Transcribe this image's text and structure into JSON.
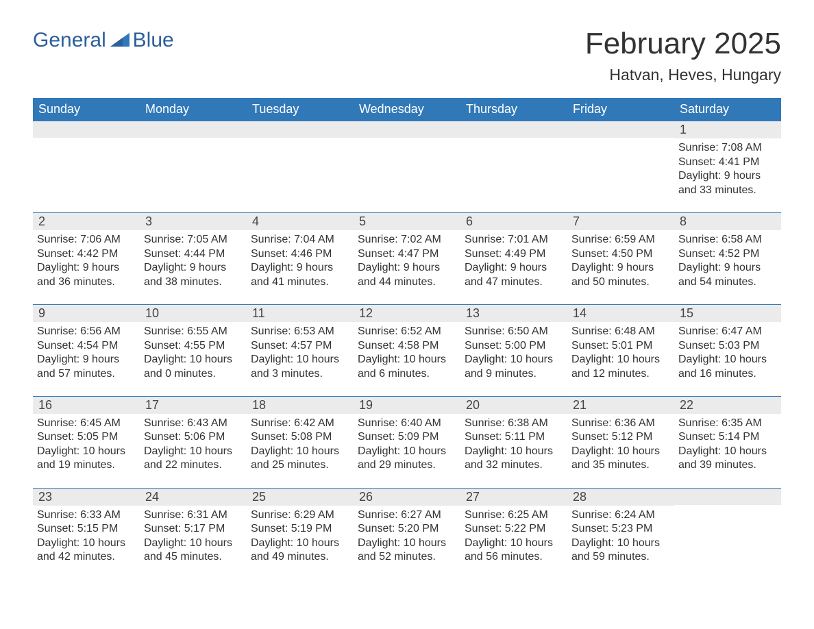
{
  "logo": {
    "word1": "General",
    "word2": "Blue",
    "color_primary": "#2d5f9a",
    "color_accent": "#3178b8"
  },
  "header": {
    "month_title": "February 2025",
    "location": "Hatvan, Heves, Hungary"
  },
  "theme": {
    "header_bg": "#3178b8",
    "header_fg": "#ffffff",
    "daynum_bg": "#ebebeb",
    "text_color": "#333333",
    "row_border": "#3178b8",
    "page_bg": "#ffffff",
    "title_fontsize": 44,
    "location_fontsize": 23,
    "dow_fontsize": 18,
    "body_fontsize": 16
  },
  "days_of_week": [
    "Sunday",
    "Monday",
    "Tuesday",
    "Wednesday",
    "Thursday",
    "Friday",
    "Saturday"
  ],
  "weeks": [
    [
      null,
      null,
      null,
      null,
      null,
      null,
      {
        "n": "1",
        "sunrise": "7:08 AM",
        "sunset": "4:41 PM",
        "daylight": "9 hours and 33 minutes."
      }
    ],
    [
      {
        "n": "2",
        "sunrise": "7:06 AM",
        "sunset": "4:42 PM",
        "daylight": "9 hours and 36 minutes."
      },
      {
        "n": "3",
        "sunrise": "7:05 AM",
        "sunset": "4:44 PM",
        "daylight": "9 hours and 38 minutes."
      },
      {
        "n": "4",
        "sunrise": "7:04 AM",
        "sunset": "4:46 PM",
        "daylight": "9 hours and 41 minutes."
      },
      {
        "n": "5",
        "sunrise": "7:02 AM",
        "sunset": "4:47 PM",
        "daylight": "9 hours and 44 minutes."
      },
      {
        "n": "6",
        "sunrise": "7:01 AM",
        "sunset": "4:49 PM",
        "daylight": "9 hours and 47 minutes."
      },
      {
        "n": "7",
        "sunrise": "6:59 AM",
        "sunset": "4:50 PM",
        "daylight": "9 hours and 50 minutes."
      },
      {
        "n": "8",
        "sunrise": "6:58 AM",
        "sunset": "4:52 PM",
        "daylight": "9 hours and 54 minutes."
      }
    ],
    [
      {
        "n": "9",
        "sunrise": "6:56 AM",
        "sunset": "4:54 PM",
        "daylight": "9 hours and 57 minutes."
      },
      {
        "n": "10",
        "sunrise": "6:55 AM",
        "sunset": "4:55 PM",
        "daylight": "10 hours and 0 minutes."
      },
      {
        "n": "11",
        "sunrise": "6:53 AM",
        "sunset": "4:57 PM",
        "daylight": "10 hours and 3 minutes."
      },
      {
        "n": "12",
        "sunrise": "6:52 AM",
        "sunset": "4:58 PM",
        "daylight": "10 hours and 6 minutes."
      },
      {
        "n": "13",
        "sunrise": "6:50 AM",
        "sunset": "5:00 PM",
        "daylight": "10 hours and 9 minutes."
      },
      {
        "n": "14",
        "sunrise": "6:48 AM",
        "sunset": "5:01 PM",
        "daylight": "10 hours and 12 minutes."
      },
      {
        "n": "15",
        "sunrise": "6:47 AM",
        "sunset": "5:03 PM",
        "daylight": "10 hours and 16 minutes."
      }
    ],
    [
      {
        "n": "16",
        "sunrise": "6:45 AM",
        "sunset": "5:05 PM",
        "daylight": "10 hours and 19 minutes."
      },
      {
        "n": "17",
        "sunrise": "6:43 AM",
        "sunset": "5:06 PM",
        "daylight": "10 hours and 22 minutes."
      },
      {
        "n": "18",
        "sunrise": "6:42 AM",
        "sunset": "5:08 PM",
        "daylight": "10 hours and 25 minutes."
      },
      {
        "n": "19",
        "sunrise": "6:40 AM",
        "sunset": "5:09 PM",
        "daylight": "10 hours and 29 minutes."
      },
      {
        "n": "20",
        "sunrise": "6:38 AM",
        "sunset": "5:11 PM",
        "daylight": "10 hours and 32 minutes."
      },
      {
        "n": "21",
        "sunrise": "6:36 AM",
        "sunset": "5:12 PM",
        "daylight": "10 hours and 35 minutes."
      },
      {
        "n": "22",
        "sunrise": "6:35 AM",
        "sunset": "5:14 PM",
        "daylight": "10 hours and 39 minutes."
      }
    ],
    [
      {
        "n": "23",
        "sunrise": "6:33 AM",
        "sunset": "5:15 PM",
        "daylight": "10 hours and 42 minutes."
      },
      {
        "n": "24",
        "sunrise": "6:31 AM",
        "sunset": "5:17 PM",
        "daylight": "10 hours and 45 minutes."
      },
      {
        "n": "25",
        "sunrise": "6:29 AM",
        "sunset": "5:19 PM",
        "daylight": "10 hours and 49 minutes."
      },
      {
        "n": "26",
        "sunrise": "6:27 AM",
        "sunset": "5:20 PM",
        "daylight": "10 hours and 52 minutes."
      },
      {
        "n": "27",
        "sunrise": "6:25 AM",
        "sunset": "5:22 PM",
        "daylight": "10 hours and 56 minutes."
      },
      {
        "n": "28",
        "sunrise": "6:24 AM",
        "sunset": "5:23 PM",
        "daylight": "10 hours and 59 minutes."
      },
      null
    ]
  ],
  "labels": {
    "sunrise": "Sunrise:",
    "sunset": "Sunset:",
    "daylight": "Daylight:"
  }
}
